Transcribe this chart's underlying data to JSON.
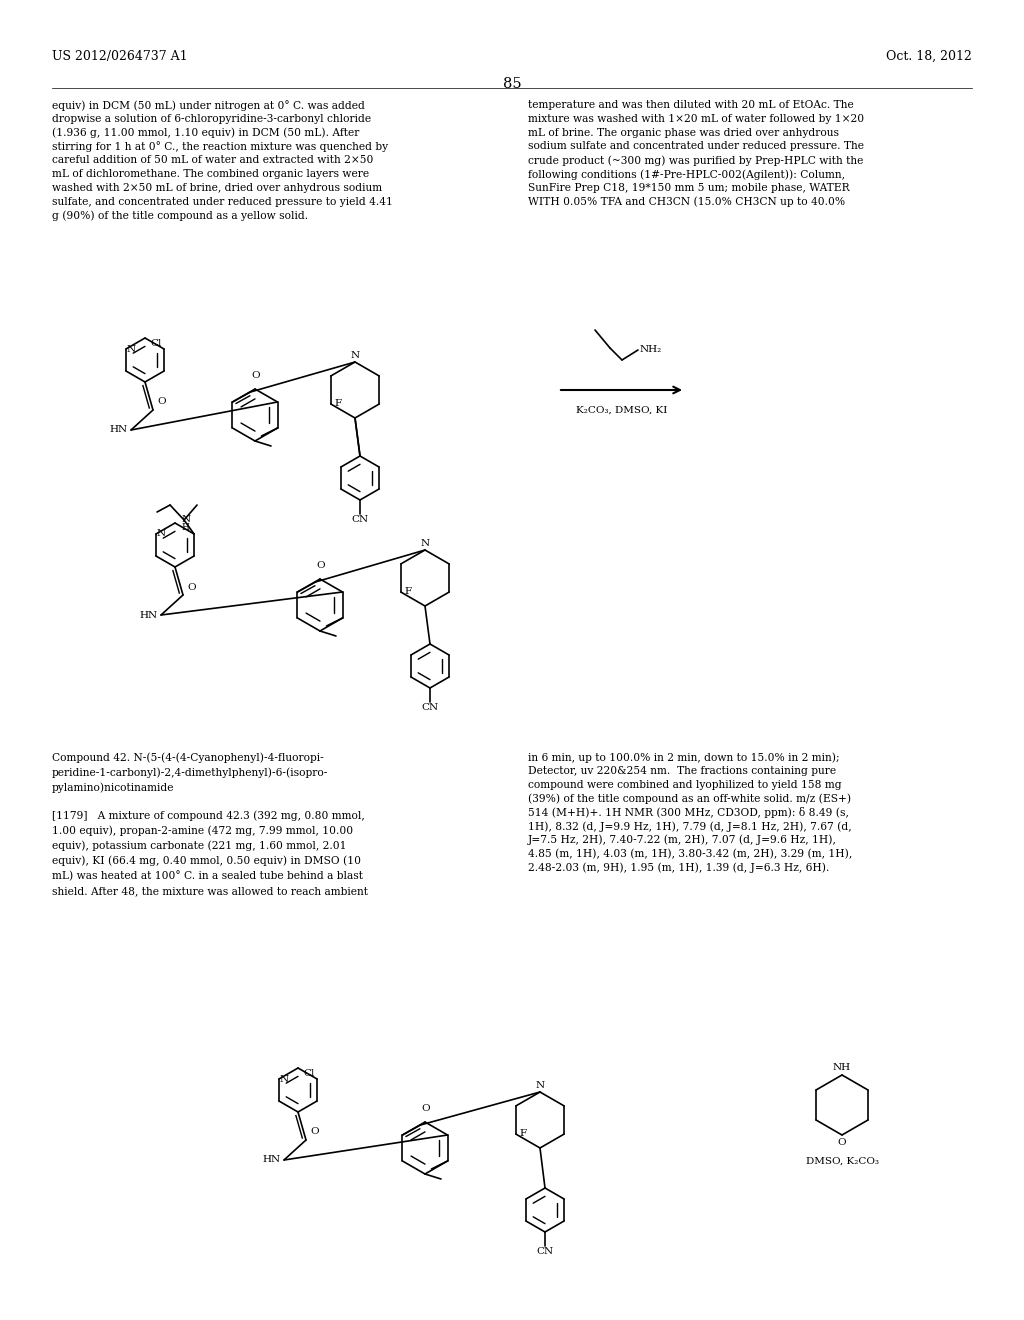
{
  "background_color": "#ffffff",
  "page_number": "85",
  "header_left": "US 2012/0264737 A1",
  "header_right": "Oct. 18, 2012",
  "left_col_lines": [
    "equiv) in DCM (50 mL) under nitrogen at 0° C. was added",
    "dropwise a solution of 6-chloropyridine-3-carbonyl chloride",
    "(1.936 g, 11.00 mmol, 1.10 equiv) in DCM (50 mL). After",
    "stirring for 1 h at 0° C., the reaction mixture was quenched by",
    "careful addition of 50 mL of water and extracted with 2×50",
    "mL of dichloromethane. The combined organic layers were",
    "washed with 2×50 mL of brine, dried over anhydrous sodium",
    "sulfate, and concentrated under reduced pressure to yield 4.41",
    "g (90%) of the title compound as a yellow solid."
  ],
  "right_col_lines": [
    "temperature and was then diluted with 20 mL of EtOAc. The",
    "mixture was washed with 1×20 mL of water followed by 1×20",
    "mL of brine. The organic phase was dried over anhydrous",
    "sodium sulfate and concentrated under reduced pressure. The",
    "crude product (~300 mg) was purified by Prep-HPLC with the",
    "following conditions (1#-Pre-HPLC-002(Agilent)): Column,",
    "SunFire Prep C18, 19*150 mm 5 um; mobile phase, WATER",
    "WITH 0.05% TFA and CH3CN (15.0% CH3CN up to 40.0%"
  ],
  "compound42_title": "Compound 42. N-(5-(4-(4-Cyanophenyl)-4-fluoropi-\nperidine-1-carbonyl)-2,4-dimethylphenyl)-6-(isopro-\npylamino)nicotinamide",
  "para1179": "[1179]   A mixture of compound 42.3 (392 mg, 0.80 mmol,\n1.00 equiv), propan-2-amine (472 mg, 7.99 mmol, 10.00\nequiv), potassium carbonate (221 mg, 1.60 mmol, 2.01\nequiv), KI (66.4 mg, 0.40 mmol, 0.50 equiv) in DMSO (10\nmL) was heated at 100° C. in a sealed tube behind a blast\nshield. After 48, the mixture was allowed to reach ambient",
  "right_col2_lines": [
    "in 6 min, up to 100.0% in 2 min, down to 15.0% in 2 min);",
    "Detector, uv 220&254 nm.  The fractions containing pure",
    "compound were combined and lyophilized to yield 158 mg",
    "(39%) of the title compound as an off-white solid. m/z (ES+)",
    "514 (M+H)+. 1H NMR (300 MHz, CD3OD, ppm): δ 8.49 (s,",
    "1H), 8.32 (d, J=9.9 Hz, 1H), 7.79 (d, J=8.1 Hz, 2H), 7.67 (d,",
    "J=7.5 Hz, 2H), 7.40-7.22 (m, 2H), 7.07 (d, J=9.6 Hz, 1H),",
    "4.85 (m, 1H), 4.03 (m, 1H), 3.80-3.42 (m, 2H), 3.29 (m, 1H),",
    "2.48-2.03 (m, 9H), 1.95 (m, 1H), 1.39 (d, J=6.3 Hz, 6H)."
  ]
}
